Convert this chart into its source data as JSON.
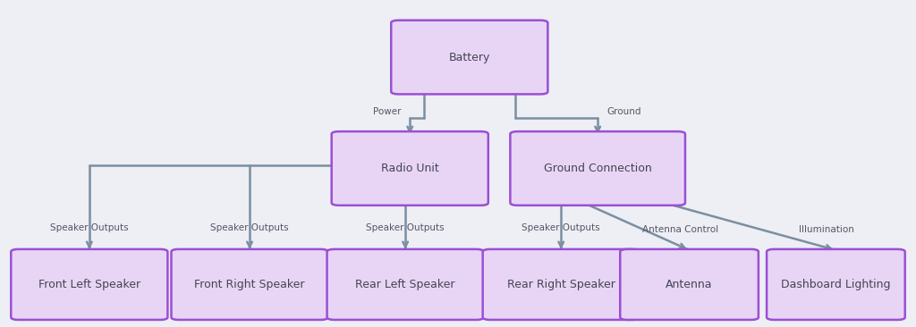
{
  "background_color": "#eeeef5",
  "box_fill": "#e8d5f5",
  "box_edge": "#9b4fd4",
  "line_color": "#7a8fa0",
  "text_color": "#444455",
  "label_color": "#555566",
  "font_size_box": 9,
  "font_size_label": 7.5,
  "boxes": {
    "Battery": [
      0.435,
      0.72,
      0.155,
      0.21
    ],
    "Radio Unit": [
      0.37,
      0.38,
      0.155,
      0.21
    ],
    "Ground Connection": [
      0.565,
      0.38,
      0.175,
      0.21
    ],
    "Front Left Speaker": [
      0.02,
      0.03,
      0.155,
      0.2
    ],
    "Front Right Speaker": [
      0.195,
      0.03,
      0.155,
      0.2
    ],
    "Rear Left Speaker": [
      0.365,
      0.03,
      0.155,
      0.2
    ],
    "Rear Right Speaker": [
      0.535,
      0.03,
      0.155,
      0.2
    ],
    "Antenna": [
      0.685,
      0.03,
      0.135,
      0.2
    ],
    "Dashboard Lighting": [
      0.845,
      0.03,
      0.135,
      0.2
    ]
  },
  "power_label": "Power",
  "ground_label": "Ground",
  "speaker_label": "Speaker Outputs",
  "antenna_label": "Antenna Control",
  "illumination_label": "Illumination"
}
